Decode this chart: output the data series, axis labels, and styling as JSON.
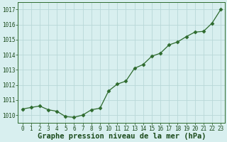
{
  "x": [
    0,
    1,
    2,
    3,
    4,
    5,
    6,
    7,
    8,
    9,
    10,
    11,
    12,
    13,
    14,
    15,
    16,
    17,
    18,
    19,
    20,
    21,
    22,
    23
  ],
  "y": [
    1010.4,
    1010.5,
    1010.6,
    1010.35,
    1010.25,
    1009.9,
    1009.85,
    1010.0,
    1010.35,
    1010.45,
    1011.6,
    1012.05,
    1012.25,
    1013.1,
    1013.35,
    1013.9,
    1014.1,
    1014.65,
    1014.85,
    1015.2,
    1015.5,
    1015.55,
    1016.1,
    1017.0
  ],
  "line_color": "#2d6a2d",
  "marker": "D",
  "marker_size": 2.5,
  "bg_color": "#d8efef",
  "grid_color": "#b8d8d8",
  "xlabel": "Graphe pression niveau de la mer (hPa)",
  "xlabel_fontsize": 7.5,
  "xlabel_color": "#1a4a1a",
  "yticks": [
    1010,
    1011,
    1012,
    1013,
    1014,
    1015,
    1016,
    1017
  ],
  "xticks": [
    0,
    1,
    2,
    3,
    4,
    5,
    6,
    7,
    8,
    9,
    10,
    11,
    12,
    13,
    14,
    15,
    16,
    17,
    18,
    19,
    20,
    21,
    22,
    23
  ],
  "ylim": [
    1009.5,
    1017.5
  ],
  "xlim": [
    -0.5,
    23.5
  ],
  "tick_color": "#1a4a1a",
  "tick_fontsize": 5.5,
  "linewidth": 0.9,
  "spine_color": "#2d6a2d"
}
